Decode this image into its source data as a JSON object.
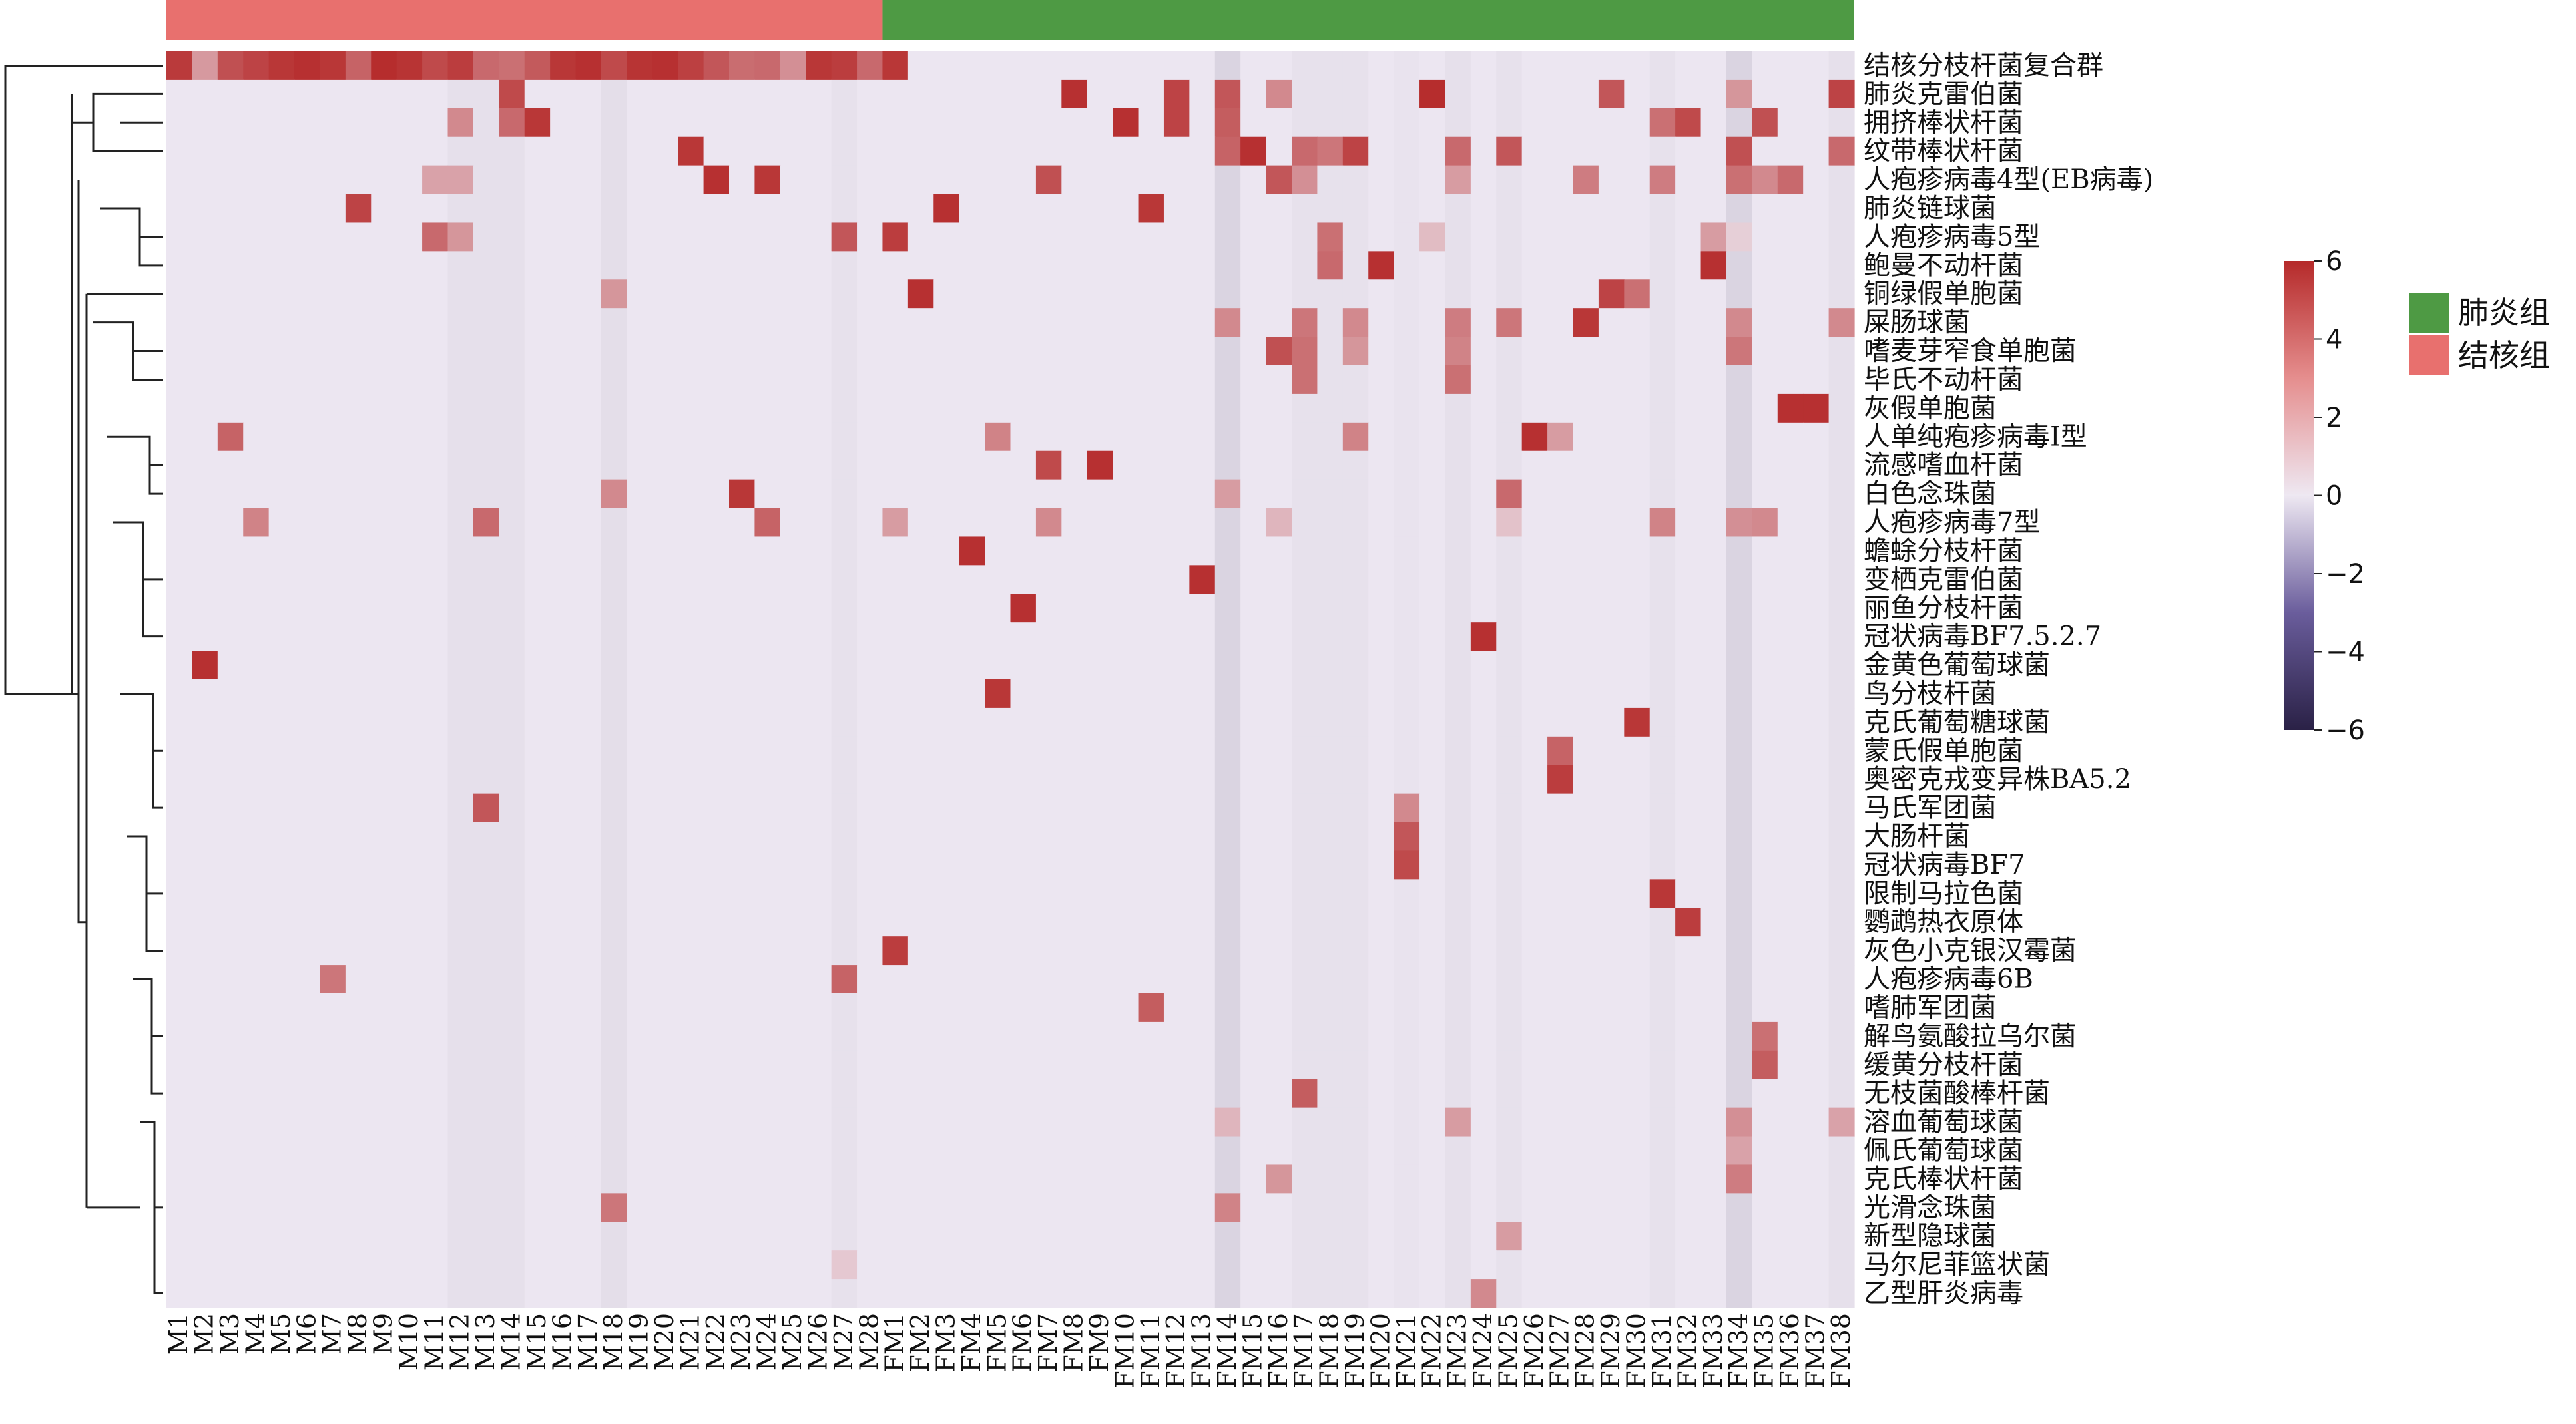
{
  "chart_data": {
    "type": "heatmap",
    "title": "",
    "columns": [
      "M1",
      "M2",
      "M3",
      "M4",
      "M5",
      "M6",
      "M7",
      "M8",
      "M9",
      "M10",
      "M11",
      "M12",
      "M13",
      "M14",
      "M15",
      "M16",
      "M17",
      "M18",
      "M19",
      "M20",
      "M21",
      "M22",
      "M23",
      "M24",
      "M25",
      "M26",
      "M27",
      "M28",
      "FM1",
      "FM2",
      "FM3",
      "FM4",
      "FM5",
      "FM6",
      "FM7",
      "FM8",
      "FM9",
      "FM10",
      "FM11",
      "FM12",
      "FM13",
      "FM14",
      "FM15",
      "FM16",
      "FM17",
      "FM18",
      "FM19",
      "FM20",
      "FM21",
      "FM22",
      "FM23",
      "FM24",
      "FM25",
      "FM26",
      "FM27",
      "FM28",
      "FM29",
      "FM30",
      "FM31",
      "FM32",
      "FM33",
      "FM34",
      "FM35",
      "FM36",
      "FM37",
      "FM38"
    ],
    "rows": [
      "结核分枝杆菌复合群",
      "肺炎克雷伯菌",
      "拥挤棒状杆菌",
      "纹带棒状杆菌",
      "人疱疹病毒4型(EB病毒)",
      "肺炎链球菌",
      "人疱疹病毒5型",
      "鲍曼不动杆菌",
      "铜绿假单胞菌",
      "屎肠球菌",
      "嗜麦芽窄食单胞菌",
      "毕氏不动杆菌",
      "灰假单胞菌",
      "人单纯疱疹病毒I型",
      "流感嗜血杆菌",
      "白色念珠菌",
      "人疱疹病毒7型",
      "蟾蜍分枝杆菌",
      "变栖克雷伯菌",
      "丽鱼分枝杆菌",
      "冠状病毒BF7.5.2.7",
      "金黄色葡萄球菌",
      "鸟分枝杆菌",
      "克氏葡萄糖球菌",
      "蒙氏假单胞菌",
      "奥密克戎变异株BA5.2",
      "马氏军团菌",
      "大肠杆菌",
      "冠状病毒BF7",
      "限制马拉色菌",
      "鹦鹉热衣原体",
      "灰色小克银汉霉菌",
      "人疱疹病毒6B",
      "嗜肺军团菌",
      "解鸟氨酸拉乌尔菌",
      "缓黄分枝杆菌",
      "无枝菌酸棒杆菌",
      "溶血葡萄球菌",
      "佩氏葡萄球菌",
      "克氏棒状杆菌",
      "光滑念珠菌",
      "新型隐球菌",
      "马尔尼菲篮状菌",
      "乙型肝炎病毒"
    ],
    "groups": [
      {
        "name": "肺炎组",
        "color": "#4E9A44"
      },
      {
        "name": "结核组",
        "color": "#E8706E"
      }
    ],
    "group_spans": [
      {
        "group": "结核组",
        "start": 0,
        "end": 27
      },
      {
        "group": "肺炎组",
        "start": 28,
        "end": 65
      }
    ],
    "colorbar": {
      "ticks": [
        6,
        4,
        2,
        0,
        -2,
        -4,
        -6
      ],
      "min": -6,
      "max": 6,
      "low_color": "#2A2146",
      "mid_color": "#EEE8F2",
      "high_color": "#B52A2A"
    },
    "column_baselines": {
      "M12": -0.25,
      "M13": -0.25,
      "M14": -0.25,
      "M18": -0.3,
      "M27": -0.2,
      "FM14": -0.6,
      "FM17": -0.2,
      "FM18": -0.2,
      "FM19": -0.2,
      "FM21": -0.15,
      "FM23": -0.25,
      "FM25": -0.2,
      "FM31": -0.2,
      "FM34": -0.6,
      "FM38": -0.25
    },
    "cells": [
      [
        "结核分枝杆菌复合群",
        "M1",
        5.5
      ],
      [
        "结核分枝杆菌复合群",
        "M2",
        2.5
      ],
      [
        "结核分枝杆菌复合群",
        "M3",
        4.8
      ],
      [
        "结核分枝杆菌复合群",
        "M4",
        5.2
      ],
      [
        "结核分枝杆菌复合群",
        "M5",
        5.6
      ],
      [
        "结核分枝杆菌复合群",
        "M6",
        5.8
      ],
      [
        "结核分枝杆菌复合群",
        "M7",
        5.6
      ],
      [
        "结核分枝杆菌复合群",
        "M8",
        4.2
      ],
      [
        "结核分枝杆菌复合群",
        "M9",
        5.9
      ],
      [
        "结核分枝杆菌复合群",
        "M10",
        5.7
      ],
      [
        "结核分枝杆菌复合群",
        "M11",
        5.0
      ],
      [
        "结核分枝杆菌复合群",
        "M12",
        5.4
      ],
      [
        "结核分枝杆菌复合群",
        "M13",
        4.0
      ],
      [
        "结核分枝杆菌复合群",
        "M14",
        3.8
      ],
      [
        "结核分枝杆菌复合群",
        "M15",
        4.5
      ],
      [
        "结核分枝杆菌复合群",
        "M16",
        5.6
      ],
      [
        "结核分枝杆菌复合群",
        "M17",
        5.8
      ],
      [
        "结核分枝杆菌复合群",
        "M18",
        5.0
      ],
      [
        "结核分枝杆菌复合群",
        "M19",
        5.7
      ],
      [
        "结核分枝杆菌复合群",
        "M20",
        5.8
      ],
      [
        "结核分枝杆菌复合群",
        "M21",
        5.3
      ],
      [
        "结核分枝杆菌复合群",
        "M22",
        4.6
      ],
      [
        "结核分枝杆菌复合群",
        "M23",
        3.9
      ],
      [
        "结核分枝杆菌复合群",
        "M24",
        4.0
      ],
      [
        "结核分枝杆菌复合群",
        "M25",
        2.8
      ],
      [
        "结核分枝杆菌复合群",
        "M26",
        5.6
      ],
      [
        "结核分枝杆菌复合群",
        "M27",
        5.4
      ],
      [
        "结核分枝杆菌复合群",
        "M28",
        4.0
      ],
      [
        "结核分枝杆菌复合群",
        "FM1",
        5.6
      ],
      [
        "肺炎克雷伯菌",
        "M14",
        5.0
      ],
      [
        "肺炎克雷伯菌",
        "FM8",
        5.8
      ],
      [
        "肺炎克雷伯菌",
        "FM12",
        5.2
      ],
      [
        "肺炎克雷伯菌",
        "FM14",
        4.6
      ],
      [
        "肺炎克雷伯菌",
        "FM16",
        3.0
      ],
      [
        "肺炎克雷伯菌",
        "FM22",
        5.9
      ],
      [
        "肺炎克雷伯菌",
        "FM29",
        4.6
      ],
      [
        "肺炎克雷伯菌",
        "FM34",
        2.6
      ],
      [
        "肺炎克雷伯菌",
        "FM38",
        5.2
      ],
      [
        "拥挤棒状杆菌",
        "M12",
        3.0
      ],
      [
        "拥挤棒状杆菌",
        "M14",
        4.0
      ],
      [
        "拥挤棒状杆菌",
        "M15",
        5.6
      ],
      [
        "拥挤棒状杆菌",
        "FM10",
        5.8
      ],
      [
        "拥挤棒状杆菌",
        "FM12",
        5.2
      ],
      [
        "拥挤棒状杆菌",
        "FM14",
        4.4
      ],
      [
        "拥挤棒状杆菌",
        "FM31",
        3.8
      ],
      [
        "拥挤棒状杆菌",
        "FM32",
        5.0
      ],
      [
        "拥挤棒状杆菌",
        "FM35",
        4.8
      ],
      [
        "纹带棒状杆菌",
        "M21",
        5.6
      ],
      [
        "纹带棒状杆菌",
        "FM14",
        4.2
      ],
      [
        "纹带棒状杆菌",
        "FM15",
        5.8
      ],
      [
        "纹带棒状杆菌",
        "FM17",
        4.0
      ],
      [
        "纹带棒状杆菌",
        "FM18",
        3.6
      ],
      [
        "纹带棒状杆菌",
        "FM19",
        5.2
      ],
      [
        "纹带棒状杆菌",
        "FM23",
        4.0
      ],
      [
        "纹带棒状杆菌",
        "FM25",
        4.6
      ],
      [
        "纹带棒状杆菌",
        "FM34",
        4.8
      ],
      [
        "纹带棒状杆菌",
        "FM38",
        4.0
      ],
      [
        "人疱疹病毒4型(EB病毒)",
        "M11",
        2.2
      ],
      [
        "人疱疹病毒4型(EB病毒)",
        "M12",
        2.2
      ],
      [
        "人疱疹病毒4型(EB病毒)",
        "M22",
        5.8
      ],
      [
        "人疱疹病毒4型(EB病毒)",
        "M24",
        5.6
      ],
      [
        "人疱疹病毒4型(EB病毒)",
        "FM7",
        4.8
      ],
      [
        "人疱疹病毒4型(EB病毒)",
        "FM16",
        4.6
      ],
      [
        "人疱疹病毒4型(EB病毒)",
        "FM17",
        2.8
      ],
      [
        "人疱疹病毒4型(EB病毒)",
        "FM23",
        2.4
      ],
      [
        "人疱疹病毒4型(EB病毒)",
        "FM28",
        3.4
      ],
      [
        "人疱疹病毒4型(EB病毒)",
        "FM31",
        3.4
      ],
      [
        "人疱疹病毒4型(EB病毒)",
        "FM34",
        3.8
      ],
      [
        "人疱疹病毒4型(EB病毒)",
        "FM35",
        3.0
      ],
      [
        "人疱疹病毒4型(EB病毒)",
        "FM36",
        4.0
      ],
      [
        "肺炎链球菌",
        "M8",
        5.2
      ],
      [
        "肺炎链球菌",
        "FM3",
        5.8
      ],
      [
        "肺炎链球菌",
        "FM11",
        5.6
      ],
      [
        "人疱疹病毒5型",
        "M11",
        4.0
      ],
      [
        "人疱疹病毒5型",
        "M12",
        2.6
      ],
      [
        "人疱疹病毒5型",
        "M27",
        4.6
      ],
      [
        "人疱疹病毒5型",
        "FM1",
        5.4
      ],
      [
        "人疱疹病毒5型",
        "FM18",
        3.8
      ],
      [
        "人疱疹病毒5型",
        "FM22",
        1.4
      ],
      [
        "人疱疹病毒5型",
        "FM33",
        2.4
      ],
      [
        "人疱疹病毒5型",
        "FM34",
        0.8
      ],
      [
        "鲍曼不动杆菌",
        "FM18",
        4.0
      ],
      [
        "鲍曼不动杆菌",
        "FM20",
        5.8
      ],
      [
        "鲍曼不动杆菌",
        "FM33",
        5.8
      ],
      [
        "铜绿假单胞菌",
        "M18",
        2.6
      ],
      [
        "铜绿假单胞菌",
        "FM2",
        5.8
      ],
      [
        "铜绿假单胞菌",
        "FM29",
        5.2
      ],
      [
        "铜绿假单胞菌",
        "FM30",
        3.8
      ],
      [
        "屎肠球菌",
        "FM14",
        3.0
      ],
      [
        "屎肠球菌",
        "FM17",
        3.6
      ],
      [
        "屎肠球菌",
        "FM19",
        3.0
      ],
      [
        "屎肠球菌",
        "FM23",
        3.4
      ],
      [
        "屎肠球菌",
        "FM25",
        3.6
      ],
      [
        "屎肠球菌",
        "FM28",
        5.6
      ],
      [
        "屎肠球菌",
        "FM34",
        3.0
      ],
      [
        "屎肠球菌",
        "FM38",
        3.0
      ],
      [
        "嗜麦芽窄食单胞菌",
        "FM16",
        4.8
      ],
      [
        "嗜麦芽窄食单胞菌",
        "FM17",
        3.8
      ],
      [
        "嗜麦芽窄食单胞菌",
        "FM19",
        2.6
      ],
      [
        "嗜麦芽窄食单胞菌",
        "FM23",
        3.2
      ],
      [
        "嗜麦芽窄食单胞菌",
        "FM34",
        3.6
      ],
      [
        "毕氏不动杆菌",
        "FM17",
        3.8
      ],
      [
        "毕氏不动杆菌",
        "FM23",
        3.8
      ],
      [
        "灰假单胞菌",
        "FM36",
        5.8
      ],
      [
        "灰假单胞菌",
        "FM37",
        5.8
      ],
      [
        "人单纯疱疹病毒I型",
        "M3",
        4.2
      ],
      [
        "人单纯疱疹病毒I型",
        "FM5",
        3.2
      ],
      [
        "人单纯疱疹病毒I型",
        "FM19",
        3.2
      ],
      [
        "人单纯疱疹病毒I型",
        "FM26",
        5.8
      ],
      [
        "人单纯疱疹病毒I型",
        "FM27",
        2.4
      ],
      [
        "流感嗜血杆菌",
        "FM7",
        5.0
      ],
      [
        "流感嗜血杆菌",
        "FM9",
        5.8
      ],
      [
        "白色念珠菌",
        "M18",
        3.0
      ],
      [
        "白色念珠菌",
        "M23",
        5.6
      ],
      [
        "白色念珠菌",
        "FM14",
        2.4
      ],
      [
        "白色念珠菌",
        "FM25",
        4.0
      ],
      [
        "人疱疹病毒7型",
        "M4",
        3.2
      ],
      [
        "人疱疹病毒7型",
        "M13",
        4.0
      ],
      [
        "人疱疹病毒7型",
        "M24",
        4.2
      ],
      [
        "人疱疹病毒7型",
        "FM1",
        2.4
      ],
      [
        "人疱疹病毒7型",
        "FM7",
        3.0
      ],
      [
        "人疱疹病毒7型",
        "FM16",
        1.6
      ],
      [
        "人疱疹病毒7型",
        "FM25",
        1.2
      ],
      [
        "人疱疹病毒7型",
        "FM31",
        3.2
      ],
      [
        "人疱疹病毒7型",
        "FM34",
        2.8
      ],
      [
        "人疱疹病毒7型",
        "FM35",
        3.0
      ],
      [
        "蟾蜍分枝杆菌",
        "FM4",
        5.8
      ],
      [
        "变栖克雷伯菌",
        "FM13",
        5.8
      ],
      [
        "丽鱼分枝杆菌",
        "FM6",
        5.8
      ],
      [
        "冠状病毒BF7.5.2.7",
        "FM24",
        5.8
      ],
      [
        "金黄色葡萄球菌",
        "M2",
        5.8
      ],
      [
        "鸟分枝杆菌",
        "FM5",
        5.6
      ],
      [
        "克氏葡萄糖球菌",
        "FM30",
        5.6
      ],
      [
        "蒙氏假单胞菌",
        "FM27",
        4.2
      ],
      [
        "奥密克戎变异株BA5.2",
        "FM27",
        5.4
      ],
      [
        "马氏军团菌",
        "M13",
        4.6
      ],
      [
        "马氏军团菌",
        "FM21",
        3.0
      ],
      [
        "大肠杆菌",
        "FM21",
        4.6
      ],
      [
        "冠状病毒BF7",
        "FM21",
        5.0
      ],
      [
        "限制马拉色菌",
        "FM31",
        5.6
      ],
      [
        "鹦鹉热衣原体",
        "FM32",
        5.4
      ],
      [
        "灰色小克银汉霉菌",
        "FM1",
        5.4
      ],
      [
        "人疱疹病毒6B",
        "M7",
        3.6
      ],
      [
        "人疱疹病毒6B",
        "M27",
        4.2
      ],
      [
        "嗜肺军团菌",
        "FM11",
        4.4
      ],
      [
        "解鸟氨酸拉乌尔菌",
        "FM35",
        3.8
      ],
      [
        "缓黄分枝杆菌",
        "FM35",
        4.4
      ],
      [
        "无枝菌酸棒杆菌",
        "FM17",
        4.4
      ],
      [
        "溶血葡萄球菌",
        "FM14",
        1.6
      ],
      [
        "溶血葡萄球菌",
        "FM23",
        2.4
      ],
      [
        "溶血葡萄球菌",
        "FM34",
        2.8
      ],
      [
        "溶血葡萄球菌",
        "FM38",
        2.2
      ],
      [
        "佩氏葡萄球菌",
        "FM34",
        2.2
      ],
      [
        "克氏棒状杆菌",
        "FM16",
        2.6
      ],
      [
        "克氏棒状杆菌",
        "FM34",
        3.4
      ],
      [
        "光滑念珠菌",
        "M18",
        3.6
      ],
      [
        "光滑念珠菌",
        "FM14",
        3.2
      ],
      [
        "新型隐球菌",
        "FM25",
        2.4
      ],
      [
        "马尔尼菲篮状菌",
        "M27",
        1.0
      ],
      [
        "乙型肝炎病毒",
        "FM24",
        3.0
      ]
    ]
  }
}
